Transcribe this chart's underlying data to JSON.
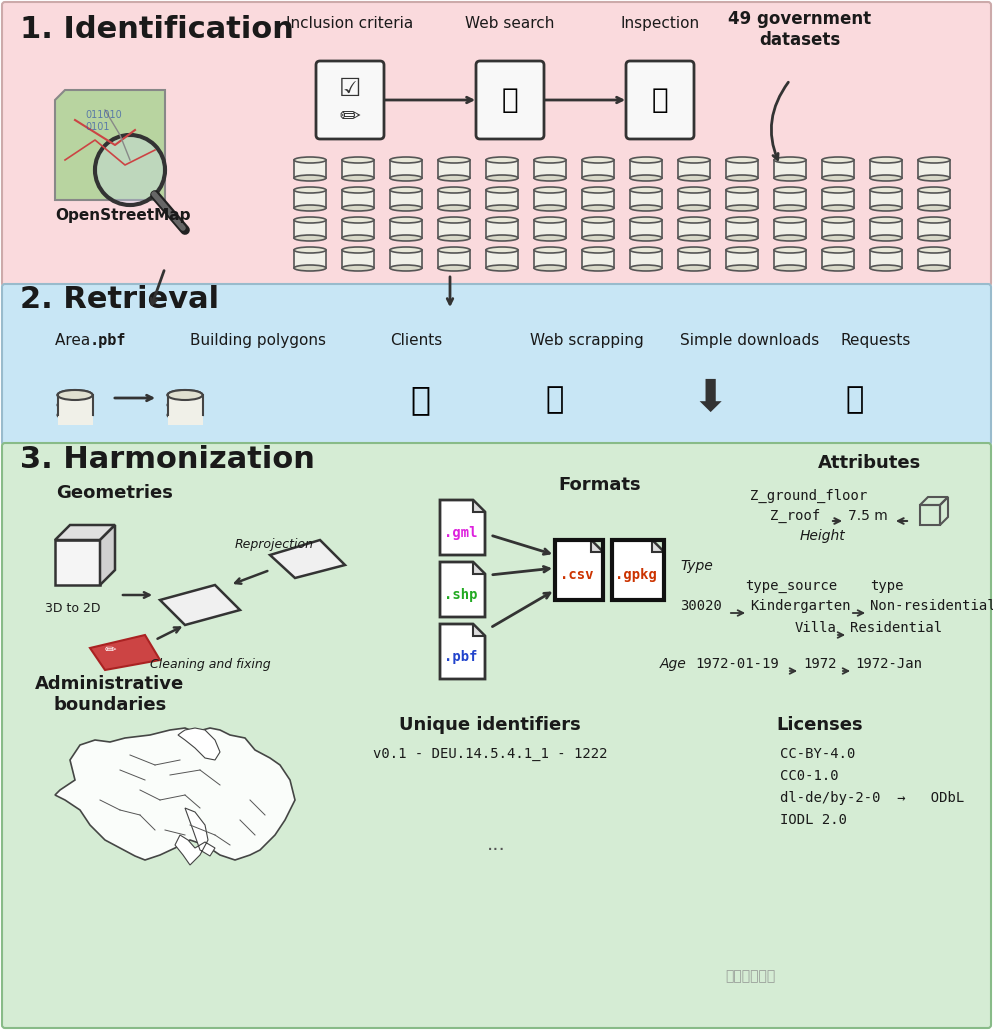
{
  "section1_bg": "#FADADD",
  "section2_bg": "#C8E6F5",
  "section3_bg": "#D5ECD4",
  "title1": "1. Identification",
  "title2": "2. Retrieval",
  "title3": "3. Harmonization",
  "text_color": "#1a1a1a",
  "section1_labels": [
    "Inclusion criteria",
    "Web search",
    "Inspection"
  ],
  "section1_note": "49 government\ndatasets",
  "osm_label": "OpenStreetMap",
  "retrieval_labels": [
    "Area .pbf",
    "Building polygons",
    "Clients",
    "Web scrapping",
    "Simple downloads",
    "Requests"
  ],
  "geom_label": "Geometries",
  "geom_sublabels": [
    "3D to 2D",
    "Reprojection",
    "Cleaning and fixing"
  ],
  "formats_label": "Formats",
  "formats_files": [
    ".gml",
    ".shp",
    ".csv",
    ".gpkg",
    ".pbf"
  ],
  "attributes_label": "Attributes",
  "attr_lines": [
    "Z_ground_floor",
    "Z_roof  →  7.5 m  ←",
    "Height"
  ],
  "type_label": "Type",
  "type_lines": [
    "type_source         type",
    "30020 →Kindergarten→Non-residential",
    "Villa→Residential"
  ],
  "age_line": "Age  1972-01-19 → 1972 ← 1972-Jan",
  "admin_label": "Administrative\nboundaries",
  "unique_label": "Unique identifiers",
  "unique_val": "v0.1 - DEU.14.5.4.1_1 - 1222",
  "licenses_label": "Licenses",
  "license_lines": [
    "CC-BY-4.0",
    "CC0-1.0",
    "dl-de/by-2-0  →   ODbL",
    "IODL 2.0"
  ],
  "ellipsis": "..."
}
